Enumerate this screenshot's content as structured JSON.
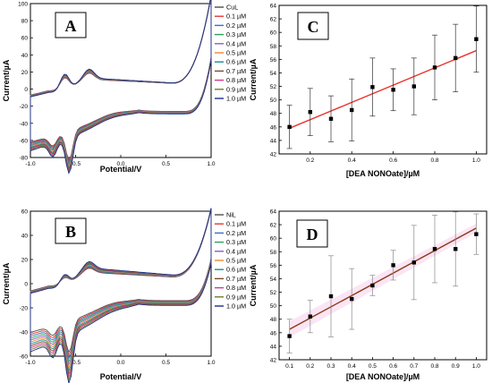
{
  "chart_data": [
    {
      "type": "line",
      "panel_label": "A",
      "xlabel": "Potential/V",
      "ylabel": "Current/µA",
      "xlim": [
        -1.0,
        1.0
      ],
      "ylim": [
        -80,
        100
      ],
      "xticks": [
        "-1.0",
        "-0.5",
        "0.0",
        "0.5",
        "1.0"
      ],
      "yticks": [
        "-80",
        "-60",
        "-40",
        "-20",
        "0",
        "20",
        "40",
        "60",
        "80",
        "100"
      ],
      "legend_position": "top-right",
      "series": [
        {
          "name": "CuL",
          "color": "#4d4d4d"
        },
        {
          "name": "0.1 µM",
          "color": "#e8342d"
        },
        {
          "name": "0.2 µM",
          "color": "#3a6fc4"
        },
        {
          "name": "0.3 µM",
          "color": "#2aa25a"
        },
        {
          "name": "0.4 µM",
          "color": "#8a5cc2"
        },
        {
          "name": "0.5 µM",
          "color": "#f08a2a"
        },
        {
          "name": "0.6 µM",
          "color": "#1a8f8f"
        },
        {
          "name": "0.7 µM",
          "color": "#7a4a2a"
        },
        {
          "name": "0.8 µM",
          "color": "#d6338f"
        },
        {
          "name": "0.9 µM",
          "color": "#6e7f2a"
        },
        {
          "name": "1.0 µM",
          "color": "#1b2e8c"
        }
      ]
    },
    {
      "type": "line",
      "panel_label": "B",
      "xlabel": "Potential/V",
      "ylabel": "Current/µA",
      "xlim": [
        -1.0,
        1.0
      ],
      "ylim": [
        -60,
        60
      ],
      "xticks": [
        "-1.0",
        "-0.5",
        "0.0",
        "0.5",
        "1.0"
      ],
      "yticks": [
        "-60",
        "-40",
        "-20",
        "0",
        "20",
        "40",
        "60"
      ],
      "legend_position": "top-right",
      "series": [
        {
          "name": "NiL",
          "color": "#4d4d4d"
        },
        {
          "name": "0.1 µM",
          "color": "#e8342d"
        },
        {
          "name": "0.2 µM",
          "color": "#3a6fc4"
        },
        {
          "name": "0.3 µM",
          "color": "#2aa25a"
        },
        {
          "name": "0.4 µM",
          "color": "#8a5cc2"
        },
        {
          "name": "0.5 µM",
          "color": "#f08a2a"
        },
        {
          "name": "0.6 µM",
          "color": "#1a8f8f"
        },
        {
          "name": "0.7 µM",
          "color": "#7a4a2a"
        },
        {
          "name": "0.8 µM",
          "color": "#d6338f"
        },
        {
          "name": "0.9 µM",
          "color": "#6e7f2a"
        },
        {
          "name": "1.0 µM",
          "color": "#1b2e8c"
        }
      ]
    },
    {
      "type": "scatter",
      "panel_label": "C",
      "xlabel": "[DEA NONOate]/µM",
      "ylabel": "Current/µA",
      "xlim": [
        0.05,
        1.05
      ],
      "ylim": [
        42,
        64
      ],
      "xticks": [
        "0.2",
        "0.4",
        "0.6",
        "0.8",
        "1.0"
      ],
      "yticks": [
        "42",
        "44",
        "46",
        "48",
        "50",
        "52",
        "54",
        "56",
        "58",
        "60",
        "62",
        "64"
      ],
      "x": [
        0.1,
        0.2,
        0.3,
        0.4,
        0.5,
        0.6,
        0.7,
        0.8,
        0.9,
        1.0
      ],
      "y": [
        46.0,
        48.2,
        47.2,
        48.5,
        51.9,
        51.5,
        52.0,
        54.8,
        56.2,
        59.0
      ],
      "yerr": [
        3.2,
        3.5,
        3.4,
        4.6,
        4.3,
        3.1,
        4.2,
        4.8,
        5.0,
        4.9
      ],
      "fit": {
        "x": [
          0.1,
          1.0
        ],
        "y": [
          45.8,
          57.3
        ],
        "color": "#e8342d"
      }
    },
    {
      "type": "scatter",
      "panel_label": "D",
      "xlabel": "[DEA NONOate]/µM",
      "ylabel": "Current/µA",
      "xlim": [
        0.05,
        1.05
      ],
      "ylim": [
        42,
        64
      ],
      "xticks": [
        "0.1",
        "0.2",
        "0.3",
        "0.4",
        "0.5",
        "0.6",
        "0.7",
        "0.8",
        "0.9",
        "1.0"
      ],
      "yticks": [
        "42",
        "44",
        "46",
        "48",
        "50",
        "52",
        "54",
        "56",
        "58",
        "60",
        "62",
        "64"
      ],
      "x": [
        0.1,
        0.2,
        0.3,
        0.4,
        0.5,
        0.6,
        0.7,
        0.8,
        0.9,
        1.0
      ],
      "y": [
        45.5,
        48.4,
        51.4,
        51.0,
        53.0,
        56.0,
        56.4,
        58.4,
        58.4,
        60.6
      ],
      "yerr": [
        2.5,
        2.4,
        6.0,
        4.5,
        1.5,
        2.2,
        5.5,
        5.0,
        5.5,
        3.0
      ],
      "fit": {
        "x": [
          0.1,
          1.0
        ],
        "y": [
          46.5,
          61.5
        ],
        "color": "#8b3a1a"
      }
    }
  ]
}
